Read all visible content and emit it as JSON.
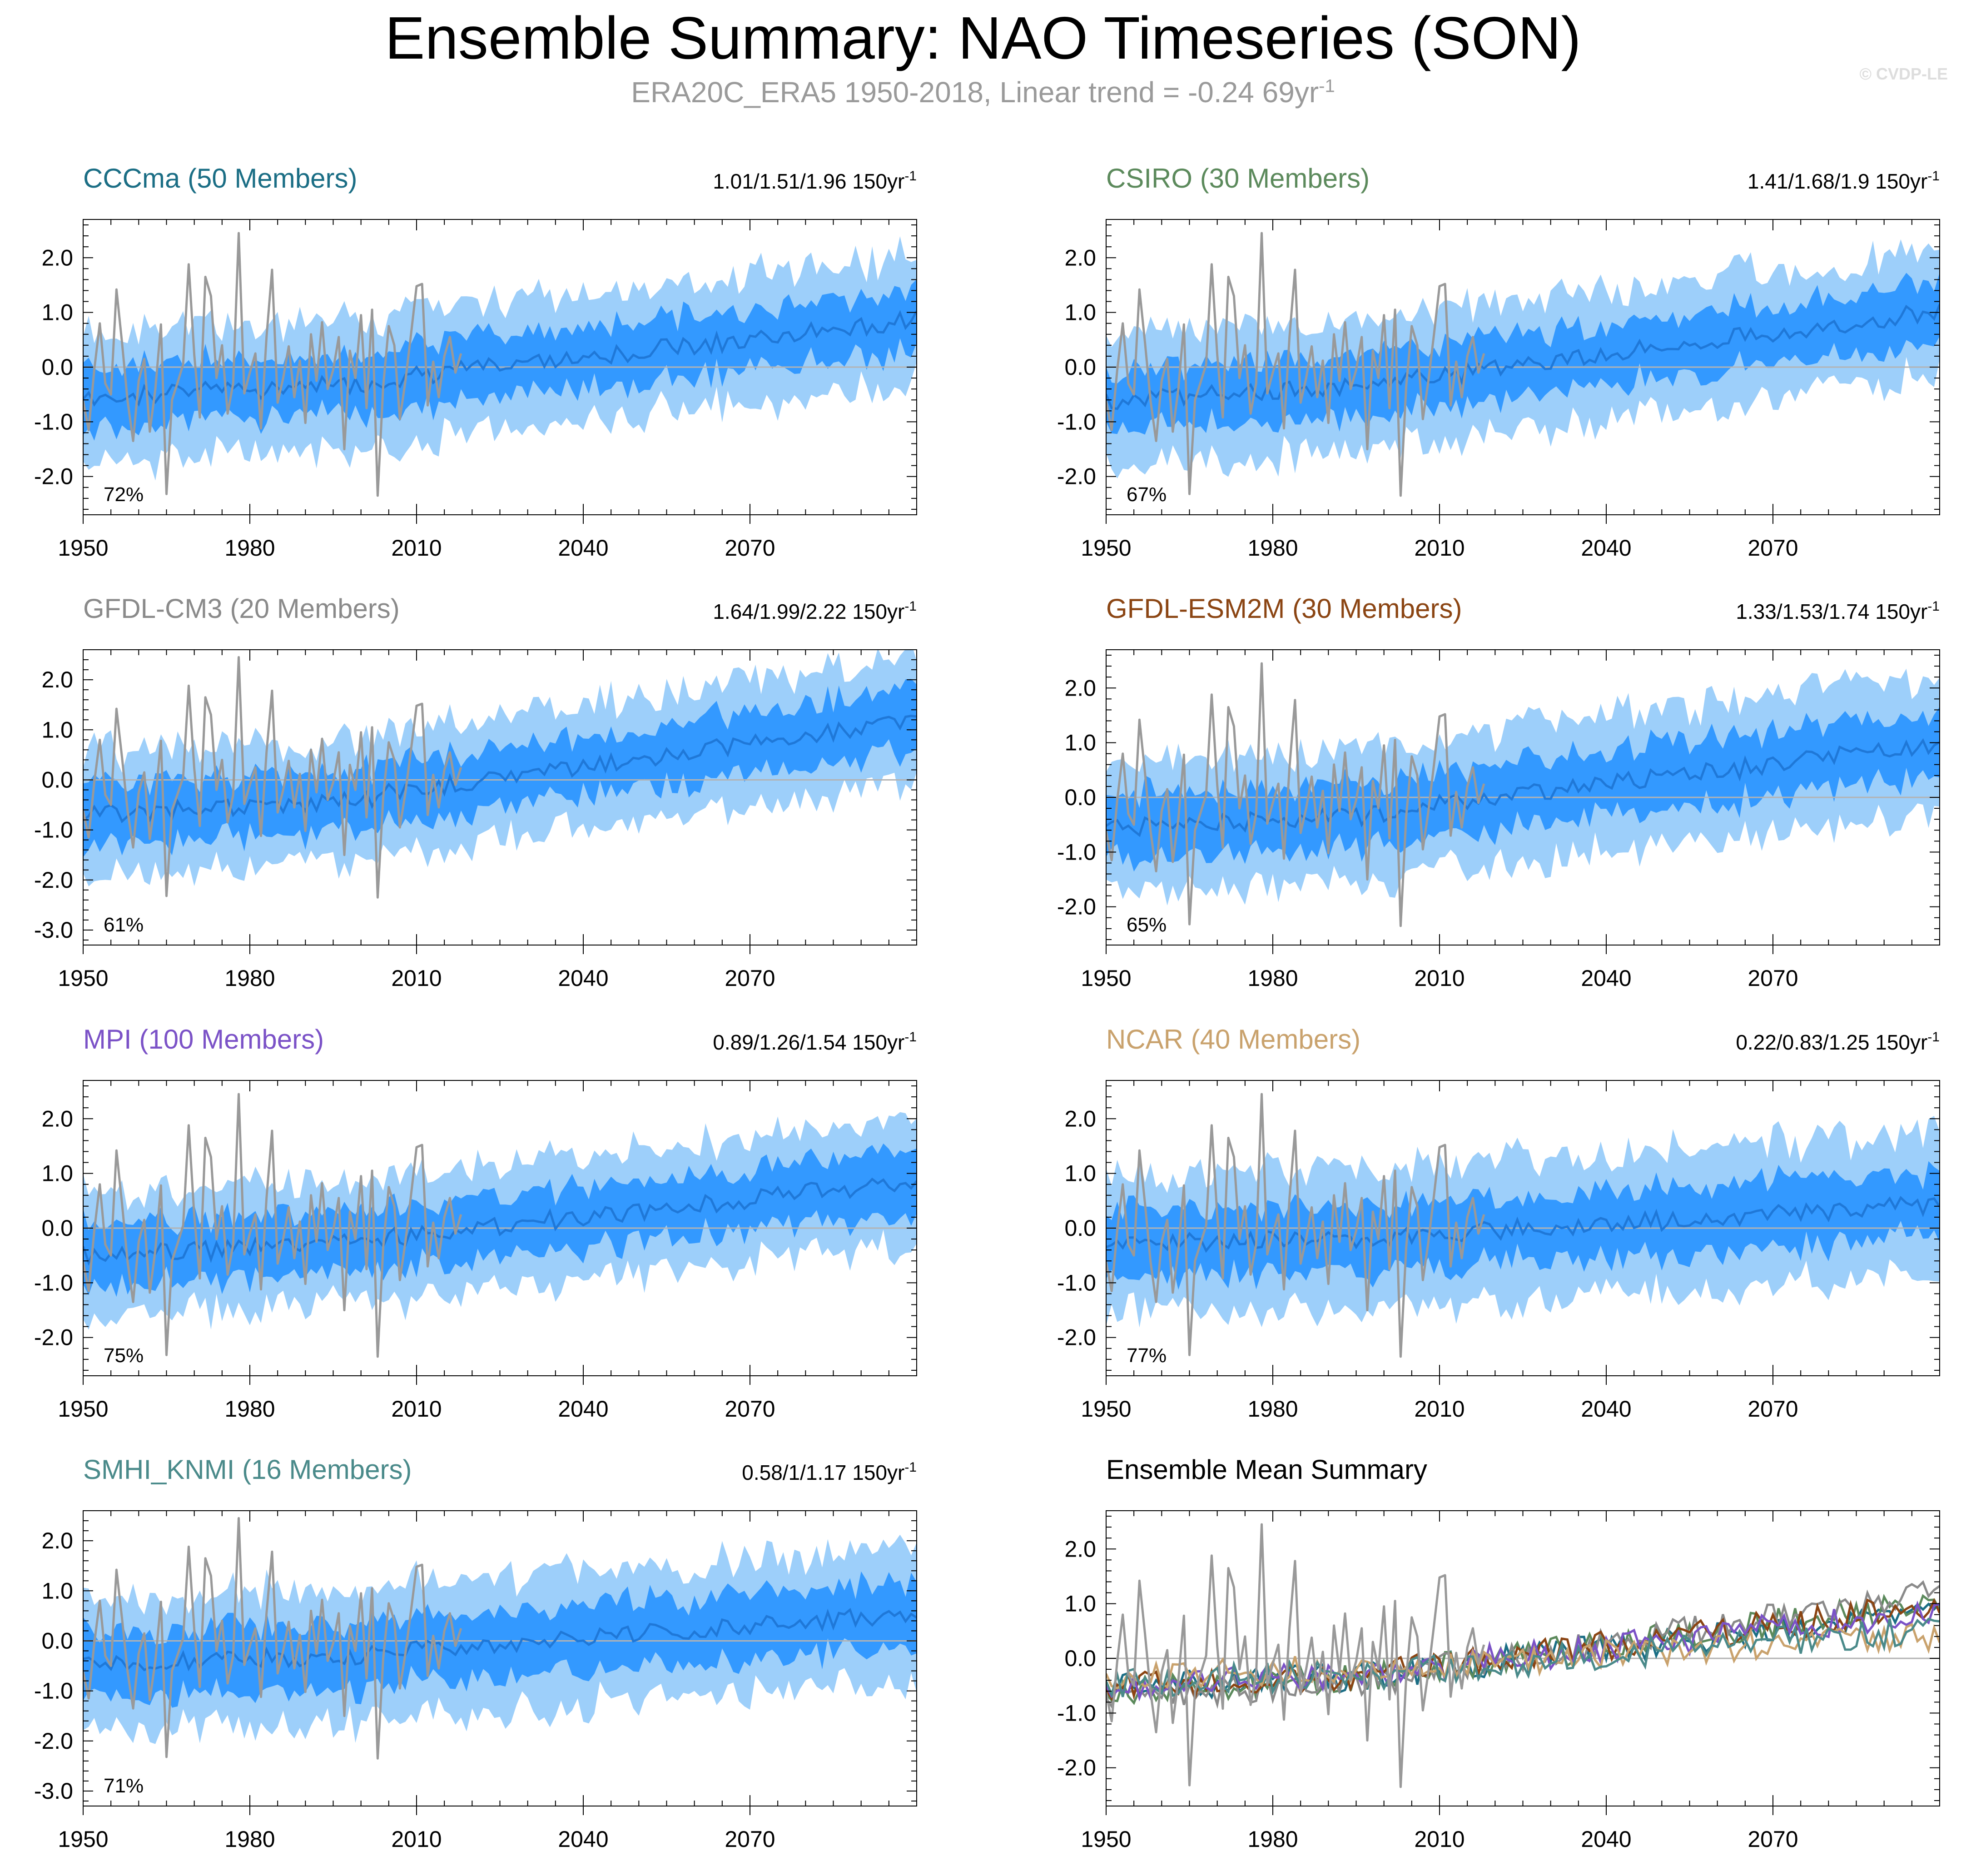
{
  "figure": {
    "title": "Ensemble Summary: NAO Timeseries (SON)",
    "subtitle_text": "ERA20C_ERA5 1950-2018, Linear trend = -0.24 69yr",
    "subtitle_sup": "-1",
    "watermark": "© CVDP-LE"
  },
  "colors": {
    "band_outer": "#9dcffa",
    "band_inner": "#3399ff",
    "ensemble_mean": "#1f78d8",
    "observations": "#999999",
    "reference_line": "#b3b3b3"
  },
  "chart_data": [
    {
      "type": "area",
      "title": "CCCma (50 Members)",
      "title_color": "#1b6e85",
      "stats": "1.01/1.51/1.96 150yr",
      "stats_sup": "-1",
      "percent": "72%",
      "xlim": [
        1950,
        2100
      ],
      "ylim": [
        -2.7,
        2.7
      ],
      "xticks": [
        1950,
        1980,
        2010,
        2040,
        2070
      ],
      "xtick_labels": [
        "1950",
        "1980",
        "2010",
        "2040",
        "2070"
      ],
      "yticks": [
        -2,
        -1,
        0,
        1,
        2
      ],
      "ytick_labels": [
        "-2.0",
        "-1.0",
        "0.0",
        "1.0",
        "2.0"
      ],
      "mean_start": -0.55,
      "mean_end": 0.8,
      "inner_half": 0.55,
      "outer_half": 1.15
    },
    {
      "type": "area",
      "title": "CSIRO (30 Members)",
      "title_color": "#5c8a5c",
      "stats": "1.41/1.68/1.9 150yr",
      "stats_sup": "-1",
      "percent": "67%",
      "xlim": [
        1950,
        2100
      ],
      "ylim": [
        -2.7,
        2.7
      ],
      "xticks": [
        1950,
        1980,
        2010,
        2040,
        2070
      ],
      "xtick_labels": [
        "1950",
        "1980",
        "2010",
        "2040",
        "2070"
      ],
      "yticks": [
        -2,
        -1,
        0,
        1,
        2
      ],
      "ytick_labels": [
        "-2.0",
        "-1.0",
        "0.0",
        "1.0",
        "2.0"
      ],
      "mean_start": -0.6,
      "mean_end": 0.95,
      "inner_half": 0.55,
      "outer_half": 1.15
    },
    {
      "type": "area",
      "title": "GFDL-CM3 (20 Members)",
      "title_color": "#8a8a8a",
      "stats": "1.64/1.99/2.22 150yr",
      "stats_sup": "-1",
      "percent": "61%",
      "xlim": [
        1950,
        2100
      ],
      "ylim": [
        -3.3,
        2.6
      ],
      "xticks": [
        1950,
        1980,
        2010,
        2040,
        2070
      ],
      "xtick_labels": [
        "1950",
        "1980",
        "2010",
        "2040",
        "2070"
      ],
      "yticks": [
        -3,
        -2,
        -1,
        0,
        1,
        2
      ],
      "ytick_labels": [
        "-3.0",
        "-2.0",
        "-1.0",
        "0.0",
        "1.0",
        "2.0"
      ],
      "mean_start": -0.7,
      "mean_end": 1.1,
      "inner_half": 0.6,
      "outer_half": 1.2
    },
    {
      "type": "area",
      "title": "GFDL-ESM2M (30 Members)",
      "title_color": "#8b4513",
      "stats": "1.33/1.53/1.74 150yr",
      "stats_sup": "-1",
      "percent": "65%",
      "xlim": [
        1950,
        2100
      ],
      "ylim": [
        -2.7,
        2.7
      ],
      "xticks": [
        1950,
        1980,
        2010,
        2040,
        2070
      ],
      "xtick_labels": [
        "1950",
        "1980",
        "2010",
        "2040",
        "2070"
      ],
      "yticks": [
        -2,
        -1,
        0,
        1,
        2
      ],
      "ytick_labels": [
        "-2.0",
        "-1.0",
        "0.0",
        "1.0",
        "2.0"
      ],
      "mean_start": -0.55,
      "mean_end": 0.9,
      "inner_half": 0.6,
      "outer_half": 1.2
    },
    {
      "type": "area",
      "title": "MPI (100 Members)",
      "title_color": "#7b52c7",
      "stats": "0.89/1.26/1.54 150yr",
      "stats_sup": "-1",
      "percent": "75%",
      "xlim": [
        1950,
        2100
      ],
      "ylim": [
        -2.7,
        2.7
      ],
      "xticks": [
        1950,
        1980,
        2010,
        2040,
        2070
      ],
      "xtick_labels": [
        "1950",
        "1980",
        "2010",
        "2040",
        "2070"
      ],
      "yticks": [
        -2,
        -1,
        0,
        1,
        2
      ],
      "ytick_labels": [
        "-2.0",
        "-1.0",
        "0.0",
        "1.0",
        "2.0"
      ],
      "mean_start": -0.5,
      "mean_end": 0.8,
      "inner_half": 0.55,
      "outer_half": 1.1
    },
    {
      "type": "area",
      "title": "NCAR (40 Members)",
      "title_color": "#c9a26d",
      "stats": "0.22/0.83/1.25 150yr",
      "stats_sup": "-1",
      "percent": "77%",
      "xlim": [
        1950,
        2100
      ],
      "ylim": [
        -2.7,
        2.7
      ],
      "xticks": [
        1950,
        1980,
        2010,
        2040,
        2070
      ],
      "xtick_labels": [
        "1950",
        "1980",
        "2010",
        "2040",
        "2070"
      ],
      "yticks": [
        -2,
        -1,
        0,
        1,
        2
      ],
      "ytick_labels": [
        "-2.0",
        "-1.0",
        "0.0",
        "1.0",
        "2.0"
      ],
      "mean_start": -0.3,
      "mean_end": 0.4,
      "inner_half": 0.6,
      "outer_half": 1.25
    },
    {
      "type": "area",
      "title": "SMHI_KNMI (16 Members)",
      "title_color": "#4a8a8a",
      "stats": "0.58/1/1.17 150yr",
      "stats_sup": "-1",
      "percent": "71%",
      "xlim": [
        1950,
        2100
      ],
      "ylim": [
        -3.3,
        2.6
      ],
      "xticks": [
        1950,
        1980,
        2010,
        2040,
        2070
      ],
      "xtick_labels": [
        "1950",
        "1980",
        "2010",
        "2040",
        "2070"
      ],
      "yticks": [
        -3,
        -2,
        -1,
        0,
        1,
        2
      ],
      "ytick_labels": [
        "-3.0",
        "-2.0",
        "-1.0",
        "0.0",
        "1.0",
        "2.0"
      ],
      "mean_start": -0.45,
      "mean_end": 0.5,
      "inner_half": 0.65,
      "outer_half": 1.3
    },
    {
      "type": "line",
      "title": "Ensemble Mean Summary",
      "title_color": "#000000",
      "stats": "",
      "stats_sup": "",
      "percent": "",
      "xlim": [
        1950,
        2100
      ],
      "ylim": [
        -2.7,
        2.7
      ],
      "xticks": [
        1950,
        1980,
        2010,
        2040,
        2070
      ],
      "xtick_labels": [
        "1950",
        "1980",
        "2010",
        "2040",
        "2070"
      ],
      "yticks": [
        -2,
        -1,
        0,
        1,
        2
      ],
      "ytick_labels": [
        "-2.0",
        "-1.0",
        "0.0",
        "1.0",
        "2.0"
      ],
      "series": [
        {
          "name": "CCCma",
          "color": "#1b6e85",
          "start": -0.55,
          "end": 0.8
        },
        {
          "name": "CSIRO",
          "color": "#5c8a5c",
          "start": -0.6,
          "end": 0.95
        },
        {
          "name": "GFDL-CM3",
          "color": "#8a8a8a",
          "start": -0.7,
          "end": 1.1
        },
        {
          "name": "GFDL-ESM2M",
          "color": "#8b4513",
          "start": -0.55,
          "end": 0.9
        },
        {
          "name": "MPI",
          "color": "#7b52c7",
          "start": -0.5,
          "end": 0.8
        },
        {
          "name": "NCAR",
          "color": "#c9a26d",
          "start": -0.3,
          "end": 0.4
        },
        {
          "name": "SMHI_KNMI",
          "color": "#4a8a8a",
          "start": -0.45,
          "end": 0.5
        }
      ]
    }
  ],
  "observations": {
    "name": "ERA20C_ERA5",
    "years": [
      1950,
      2018
    ],
    "values": [
      -0.62,
      -1.15,
      -0.05,
      0.8,
      -0.3,
      -0.5,
      1.42,
      0.45,
      -0.62,
      -1.35,
      -0.25,
      0.15,
      -1.18,
      -0.4,
      0.78,
      -2.32,
      -0.6,
      -0.28,
      0.05,
      1.88,
      0.22,
      -0.92,
      1.65,
      1.3,
      -0.2,
      0.4,
      -0.85,
      -0.3,
      2.45,
      -0.48,
      -0.1,
      0.25,
      -1.12,
      0.55,
      1.78,
      -0.65,
      -0.2,
      0.38,
      -0.55,
      0.12,
      -1.02,
      0.6,
      -0.25,
      0.82,
      -0.4,
      -0.05,
      0.55,
      -1.5,
      0.3,
      -0.2,
      0.95,
      -0.75,
      1.05,
      -2.35,
      -0.35,
      0.75,
      0.4,
      -0.95,
      -0.25,
      0.6,
      1.48,
      1.52,
      -0.7,
      0.1,
      -0.55,
      0.2,
      0.55,
      -0.1,
      0.25
    ]
  }
}
